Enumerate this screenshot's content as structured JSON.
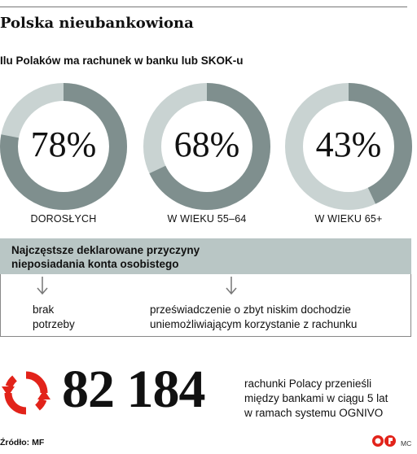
{
  "title": "Polska nieubankowiona",
  "subtitle": "Ilu Polaków ma rachunek w banku lub SKOK-u",
  "colors": {
    "filled": "#7f8f8e",
    "remaining": "#c9d3d2",
    "accent": "#e2231a",
    "band": "#b9c6c5"
  },
  "chart_data": {
    "type": "pie",
    "title": "Ilu Polaków ma rachunek w banku lub SKOK-u",
    "categories": [
      "DOROSŁYCH",
      "W WIEKU 55–64",
      "W WIEKU 65+"
    ],
    "values": [
      78,
      68,
      43
    ],
    "value_labels": [
      "78%",
      "68%",
      "43%"
    ],
    "unit": "%"
  },
  "reasons": {
    "title_line1": "Najczęstsze deklarowane przyczyny",
    "title_line2": "nieposiadania konta osobistego",
    "items": [
      {
        "line1": "brak",
        "line2": "potrzeby"
      },
      {
        "line1": "przeświadczenie o zbyt niskim dochodzie",
        "line2": "uniemożliwiającym korzystanie z rachunku"
      }
    ]
  },
  "transfers": {
    "number": "82 184",
    "desc_line1": "rachunki Polacy przenieśli",
    "desc_line2": "między bankami w ciągu 5 lat",
    "desc_line3": "w ramach systemu OGNIVO",
    "icon": "refresh-arrows-icon"
  },
  "source": "Źródło: MF",
  "credit": "MC"
}
